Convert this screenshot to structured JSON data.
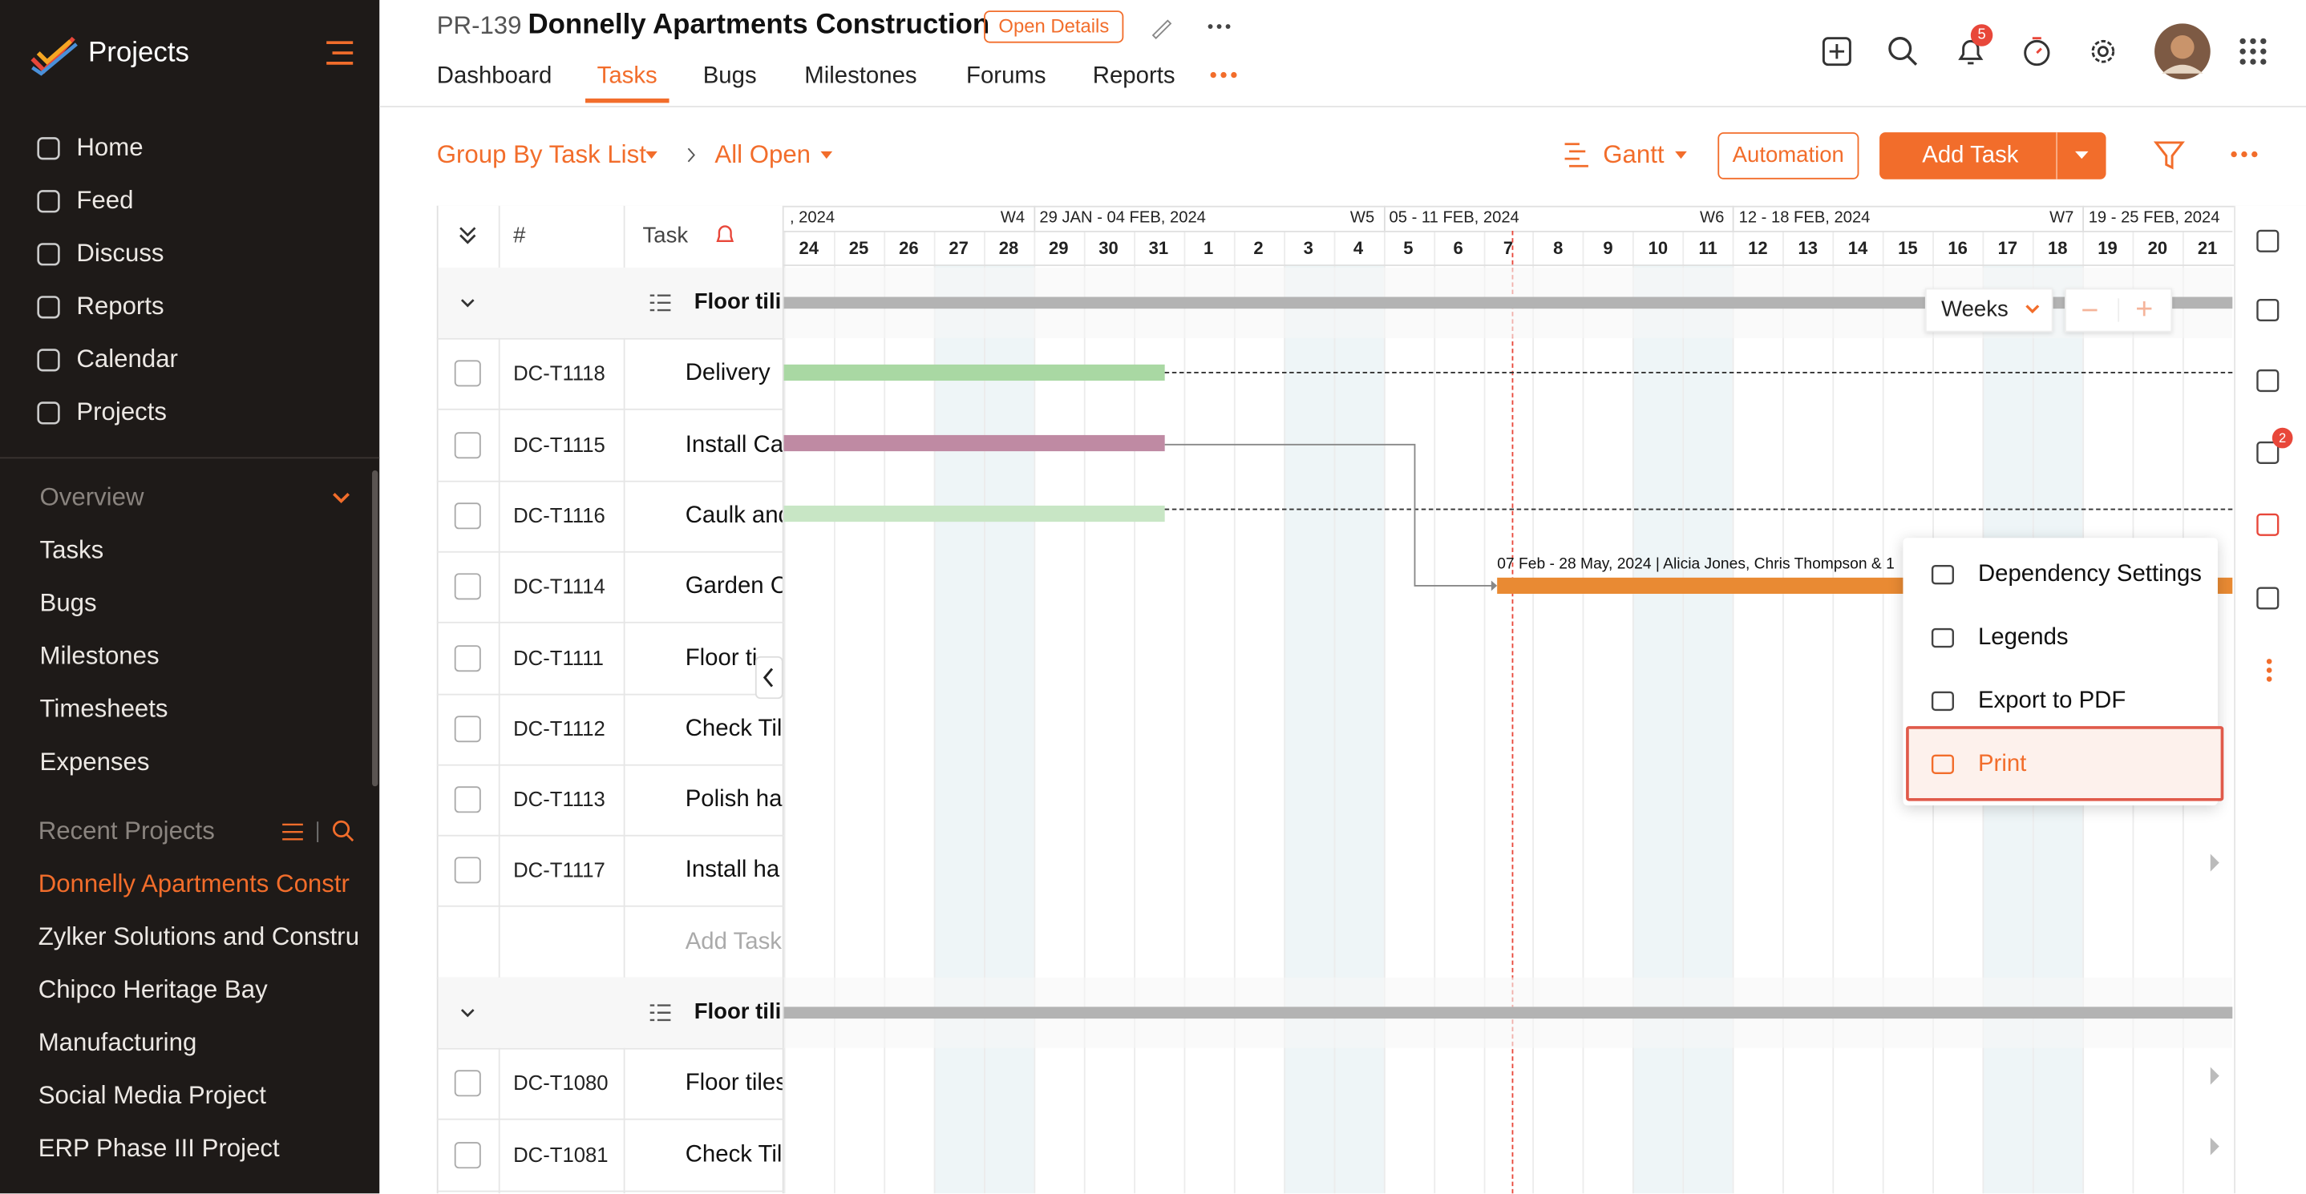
{
  "sidebar": {
    "title": "Projects",
    "nav": [
      "Home",
      "Feed",
      "Discuss",
      "Reports",
      "Calendar",
      "Projects"
    ],
    "overview_title": "Overview",
    "overview": [
      "Tasks",
      "Bugs",
      "Milestones",
      "Timesheets",
      "Expenses"
    ],
    "recent_title": "Recent Projects",
    "recent": [
      "Donnelly Apartments Constr",
      "Zylker Solutions and Constru",
      "Chipco Heritage Bay",
      "Manufacturing",
      "Social Media Project",
      "ERP Phase III Project"
    ],
    "active_recent": 0
  },
  "header": {
    "project_id": "PR-139",
    "project_name": "Donnelly Apartments Construction",
    "open_details": "Open Details",
    "notifications": 5,
    "tabs": [
      "Dashboard",
      "Tasks",
      "Bugs",
      "Milestones",
      "Forums",
      "Reports"
    ],
    "active_tab": 1
  },
  "toolbar": {
    "group_by": "Group By Task List",
    "filter": "All Open",
    "view": "Gantt",
    "automation": "Automation",
    "add_task": "Add Task"
  },
  "table": {
    "columns": [
      "#",
      "Task"
    ],
    "rows": [
      {
        "type": "group",
        "task": "Floor tili"
      },
      {
        "id": "DC-T1118",
        "task": "Delivery"
      },
      {
        "id": "DC-T1115",
        "task": "Install Ca"
      },
      {
        "id": "DC-T1116",
        "task": "Caulk and"
      },
      {
        "id": "DC-T1114",
        "task": "Garden C"
      },
      {
        "id": "DC-T1111",
        "task": "Floor ti"
      },
      {
        "id": "DC-T1112",
        "task": "Check Til"
      },
      {
        "id": "DC-T1113",
        "task": "Polish ha"
      },
      {
        "id": "DC-T1117",
        "task": "Install ha"
      },
      {
        "type": "add",
        "task": "Add Task"
      },
      {
        "type": "group",
        "task": "Floor tili"
      },
      {
        "id": "DC-T1080",
        "task": "Floor tiles"
      },
      {
        "id": "DC-T1081",
        "task": "Check Til"
      }
    ]
  },
  "gantt": {
    "weeks": [
      {
        "range": ", 2024",
        "number": "W4"
      },
      {
        "range": "29 JAN - 04 FEB, 2024",
        "number": "W5"
      },
      {
        "range": "05 - 11 FEB, 2024",
        "number": "W6"
      },
      {
        "range": "12 - 18 FEB, 2024",
        "number": "W7"
      },
      {
        "range": "19 - 25 FEB, 2024"
      }
    ],
    "days": [
      24,
      25,
      26,
      27,
      28,
      29,
      30,
      31,
      1,
      2,
      3,
      4,
      5,
      6,
      7,
      8,
      9,
      10,
      11,
      12,
      13,
      14,
      15,
      16,
      17,
      18,
      19,
      20,
      21
    ],
    "bar_label": "07 Feb - 28 May, 2024 | Alicia Jones, Chris Thompson & 1",
    "scale": "Weeks"
  },
  "menu": {
    "items": [
      "Dependency Settings",
      "Legends",
      "Export to PDF",
      "Print"
    ],
    "selected": 3
  },
  "rail": {
    "badge": 2
  }
}
